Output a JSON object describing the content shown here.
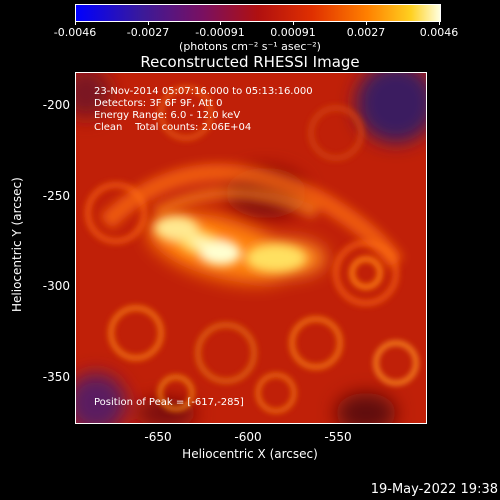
{
  "colorbar": {
    "labels": [
      "-0.0046",
      "-0.0027",
      "-0.00091",
      "0.00091",
      "0.0027",
      "0.0046"
    ],
    "units": "(photons cm⁻² s⁻¹ asec⁻²)"
  },
  "title": "Reconstructed RHESSI Image",
  "info": {
    "time_range": "23-Nov-2014 05:07:16.000 to 05:13:16.000",
    "detectors": "Detectors: 3F 6F 9F, Att 0",
    "energy": "Energy Range: 6.0 - 12.0 keV",
    "method": "Clean    Total counts: 2.06E+04",
    "peak": "Position of Peak = [-617,-285]"
  },
  "axes": {
    "xlabel": "Heliocentric X (arcsec)",
    "ylabel": "Heliocentric Y (arcsec)",
    "xticks": [
      "-650",
      "-600",
      "-550"
    ],
    "yticks": [
      "-200",
      "-250",
      "-300",
      "-350"
    ]
  },
  "timestamp": "19-May-2022 19:38"
}
